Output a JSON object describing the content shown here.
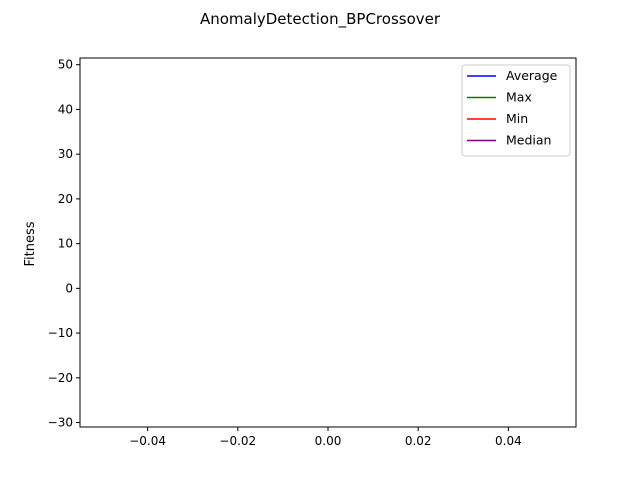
{
  "chart_data": {
    "type": "line",
    "title": "AnomalyDetection_BPCrossover",
    "xlabel": "",
    "ylabel": "Fitness",
    "xlim": [
      -0.055,
      0.055
    ],
    "ylim": [
      -31,
      51.5
    ],
    "xticks": [
      -0.04,
      -0.02,
      0.0,
      0.02,
      0.04
    ],
    "xtick_labels": [
      "−0.04",
      "−0.02",
      "0.00",
      "0.02",
      "0.04"
    ],
    "yticks": [
      -30,
      -20,
      -10,
      0,
      10,
      20,
      30,
      40,
      50
    ],
    "ytick_labels": [
      "−30",
      "−20",
      "−10",
      "0",
      "10",
      "20",
      "30",
      "40",
      "50"
    ],
    "grid": false,
    "legend_position": "top-right",
    "series": [
      {
        "name": "Average",
        "color": "#0000ff",
        "x": [],
        "y": []
      },
      {
        "name": "Max",
        "color": "#008000",
        "x": [],
        "y": []
      },
      {
        "name": "Min",
        "color": "#ff0000",
        "x": [],
        "y": []
      },
      {
        "name": "Median",
        "color": "#800080",
        "x": [],
        "y": []
      }
    ]
  }
}
